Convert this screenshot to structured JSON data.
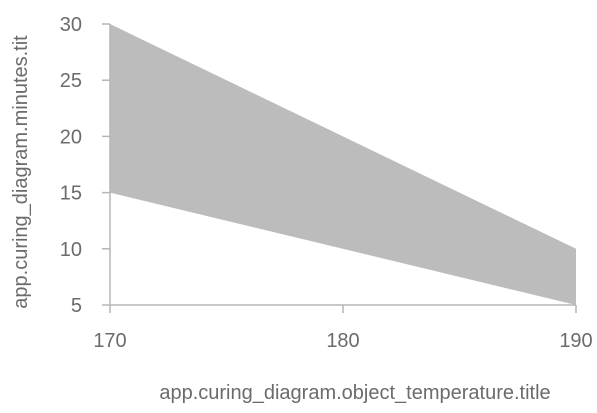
{
  "chart_data": {
    "type": "area",
    "title": "",
    "xlabel": "app.curing_diagram.object_temperature.title",
    "ylabel": "app.curing_diagram.minutes.tit",
    "x": [
      170,
      190
    ],
    "series": [
      {
        "lower": [
          15,
          5
        ],
        "upper": [
          30,
          10
        ]
      }
    ],
    "xlim": [
      170,
      190
    ],
    "ylim": [
      5,
      30
    ],
    "x_ticks": [
      "170",
      "180",
      "190"
    ],
    "y_ticks": [
      "5",
      "10",
      "15",
      "20",
      "25",
      "30"
    ],
    "grid": false,
    "legend": "none",
    "colors": {
      "band_fill": "#bcbcbc",
      "axis": "#b5b5b5",
      "text": "#6b6b6b"
    }
  }
}
